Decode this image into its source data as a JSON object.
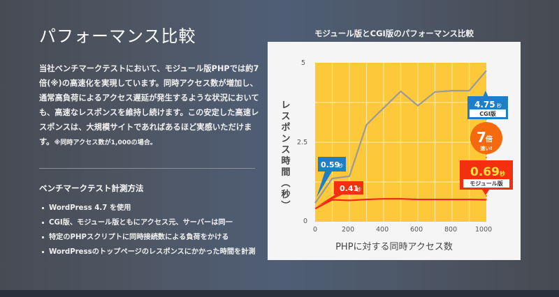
{
  "page": {
    "title": "パフォーマンス比較",
    "description": "当社ベンチマークテストにおいて、モジュール版PHPでは約7倍(※)の高速化を実現しています。同時アクセス数が増加し、通常高負荷によるアクセス遅延が発生するような状況においても、高速なレスポンスを維持し続けます。この安定した高速レスポンスは、大規模サイトであればあるほど実感いただけます。",
    "note": "※同時アクセス数が1,000の場合。"
  },
  "method": {
    "heading": "ベンチマークテスト計測方法",
    "items": [
      "WordPress 4.7 を使用",
      "CGI版、モジュール版ともにアクセス元、サーバーは同一",
      "特定のPHPスクリプトに同時接続数による負荷をかける",
      "WordPressのトップページのレスポンスにかかった時間を計測"
    ]
  },
  "chart": {
    "title": "モジュール版とCGI版のパフォーマンス比較",
    "ylabel": "レスポンス時間（秒）",
    "xlabel": "PHPに対する同時アクセス数",
    "yticks": [
      "5",
      "2.5",
      "0"
    ],
    "xticks": [
      "0",
      "200",
      "400",
      "600",
      "800",
      "1000"
    ],
    "callouts": {
      "cgi_start": "0.59秒",
      "module_start": "0.41秒",
      "cgi_end_value": "4.75",
      "cgi_end_unit": "秒",
      "cgi_end_label": "CGI版",
      "module_end_value": "0.69",
      "module_end_unit": "秒",
      "module_end_label": "モジュール版",
      "ratio_num": "7",
      "ratio_unit": "倍",
      "ratio_text": "速い!"
    }
  },
  "colors": {
    "plot_bg": "#fdc93a",
    "cgi_line": "#9a9a9a",
    "module_line": "#f5221b",
    "cgi_badge": "#1f7fc6",
    "module_badge": "#f42f0f",
    "ratio_circle": "#f56a0e",
    "module_value_text": "#ffe040"
  },
  "chart_data": {
    "type": "line",
    "title": "モジュール版とCGI版のパフォーマンス比較",
    "xlabel": "PHPに対する同時アクセス数",
    "ylabel": "レスポンス時間（秒）",
    "x": [
      0,
      100,
      200,
      300,
      400,
      500,
      600,
      700,
      800,
      900,
      1000
    ],
    "series": [
      {
        "name": "CGI版",
        "values": [
          0.59,
          1.36,
          1.43,
          3.05,
          3.58,
          4.1,
          3.65,
          4.08,
          4.12,
          4.12,
          4.75
        ]
      },
      {
        "name": "モジュール版",
        "values": [
          0.41,
          0.69,
          0.67,
          0.7,
          0.72,
          0.72,
          0.7,
          0.7,
          0.7,
          0.7,
          0.69
        ]
      }
    ],
    "xlim": [
      0,
      1000
    ],
    "ylim": [
      0,
      5
    ],
    "xticks": [
      0,
      200,
      400,
      600,
      800,
      1000
    ],
    "yticks": [
      0,
      2.5,
      5
    ],
    "grid": true,
    "annotations": [
      "0.59秒",
      "0.41秒",
      "4.75秒 CGI版",
      "0.69秒 モジュール版",
      "7倍 速い!"
    ]
  }
}
